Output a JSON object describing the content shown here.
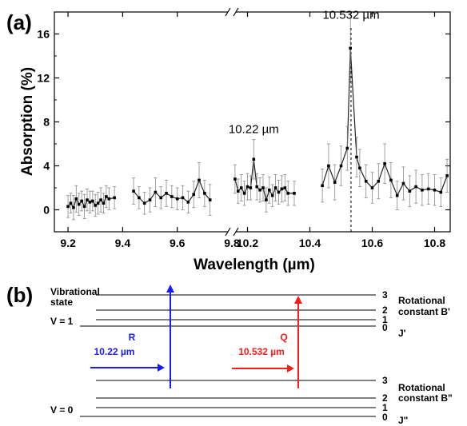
{
  "panel_a_label": "(a)",
  "panel_b_label": "(b)",
  "chart_data": {
    "type": "line",
    "xlabel": "Wavelength (µm)",
    "ylabel": "Absorption (%)",
    "ylim": [
      -2,
      18
    ],
    "yticks": [
      "0",
      "4",
      "8",
      "12",
      "16"
    ],
    "xticks_left": [
      "9.2",
      "9.4",
      "9.6",
      "9.8"
    ],
    "xticks_right": [
      "10.2",
      "10.4",
      "10.6",
      "10.8"
    ],
    "x_break_between": [
      9.8,
      10.15
    ],
    "vline_x": 10.532,
    "annotations": [
      {
        "text": "10.22 µm",
        "x": 10.22,
        "y": 6.4
      },
      {
        "text": "10.532 µm",
        "x": 10.532,
        "y": 16.8
      }
    ],
    "series": [
      {
        "segments": [
          {
            "x": [
              9.2,
              9.21,
              9.22,
              9.23,
              9.24,
              9.25,
              9.26,
              9.27,
              9.28,
              9.29,
              9.3,
              9.31,
              9.32,
              9.33,
              9.34,
              9.35,
              9.37
            ],
            "y": [
              0.3,
              0.6,
              0.2,
              1.0,
              0.5,
              0.8,
              0.3,
              0.9,
              0.7,
              0.8,
              0.4,
              0.6,
              0.9,
              0.6,
              1.2,
              1.0,
              1.1
            ],
            "err": [
              1.0,
              0.9,
              1.1,
              1.2,
              1.0,
              0.9,
              1.1,
              1.0,
              1.0,
              0.9,
              1.0,
              1.0,
              1.1,
              0.9,
              1.0,
              1.0,
              1.0
            ]
          },
          {
            "x": [
              9.44,
              9.46,
              9.48,
              9.5,
              9.52,
              9.54,
              9.56,
              9.58,
              9.6,
              9.62,
              9.64,
              9.66,
              9.68,
              9.7,
              9.72
            ],
            "y": [
              1.7,
              1.1,
              0.6,
              0.9,
              1.6,
              1.1,
              1.5,
              1.2,
              1.0,
              1.1,
              0.7,
              1.4,
              2.7,
              1.5,
              0.9
            ],
            "err": [
              1.2,
              1.0,
              1.0,
              1.1,
              1.3,
              1.0,
              1.2,
              1.0,
              1.0,
              1.1,
              1.0,
              1.2,
              1.6,
              1.2,
              1.4
            ]
          },
          {
            "x": [
              10.16,
              10.17,
              10.18,
              10.19,
              10.2,
              10.21,
              10.22,
              10.23,
              10.24,
              10.25,
              10.26,
              10.27,
              10.28,
              10.29,
              10.3,
              10.31,
              10.32,
              10.33,
              10.35
            ],
            "y": [
              2.8,
              1.7,
              2.0,
              1.5,
              2.1,
              2.0,
              4.6,
              2.1,
              1.8,
              2.0,
              0.9,
              1.8,
              1.3,
              2.0,
              1.6,
              1.9,
              2.0,
              1.5,
              1.5
            ],
            "err": [
              1.3,
              1.1,
              1.2,
              1.1,
              1.2,
              1.1,
              1.8,
              1.2,
              1.1,
              1.2,
              1.1,
              1.2,
              1.0,
              1.2,
              1.1,
              1.2,
              1.2,
              1.1,
              1.1
            ]
          },
          {
            "x": [
              10.44,
              10.46,
              10.48,
              10.5,
              10.52,
              10.53,
              10.55,
              10.56,
              10.58,
              10.6,
              10.62,
              10.64,
              10.66,
              10.68,
              10.7,
              10.72,
              10.74,
              10.76,
              10.78,
              10.8,
              10.82,
              10.84
            ],
            "y": [
              2.2,
              4.0,
              2.5,
              4.0,
              5.6,
              14.7,
              4.8,
              3.8,
              2.6,
              2.0,
              2.6,
              4.2,
              2.7,
              1.3,
              2.4,
              1.7,
              2.1,
              1.8,
              1.9,
              1.8,
              1.6,
              3.1
            ],
            "err": [
              1.5,
              2.0,
              1.6,
              1.8,
              2.0,
              3.2,
              1.8,
              1.7,
              1.5,
              1.4,
              1.6,
              1.8,
              1.6,
              1.3,
              1.5,
              1.4,
              1.5,
              1.4,
              1.4,
              1.4,
              1.3,
              1.5
            ]
          }
        ]
      }
    ]
  },
  "diagram": {
    "vibrational_state_label": "Vibrational state",
    "v1_label": "V = 1",
    "v0_label": "V = 0",
    "upper_levels": [
      "3",
      "2",
      "1",
      "0"
    ],
    "lower_levels": [
      "3",
      "2",
      "1",
      "0"
    ],
    "upper_rot_label_1": "Rotational",
    "upper_rot_label_2": "constant B'",
    "upper_j_label": "J'",
    "lower_rot_label_1": "Rotational",
    "lower_rot_label_2": "constant B\"",
    "lower_j_label": "J\"",
    "r_branch_label": "R",
    "r_wavelength": "10.22 µm",
    "q_branch_label": "Q",
    "q_wavelength": "10.532 µm",
    "r_color": "#1a1aff",
    "q_color": "#ff1a1a"
  }
}
